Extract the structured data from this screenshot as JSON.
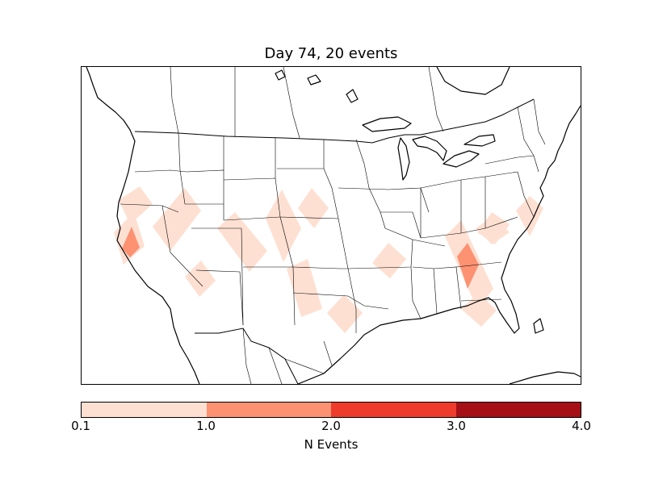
{
  "title": "Day 74, 20 events",
  "colorbar": {
    "label": "N Events",
    "ticks": [
      "0.1",
      "1.0",
      "2.0",
      "3.0",
      "4.0"
    ],
    "colors": [
      "#fee0d2",
      "#fc9272",
      "#ef3b2c",
      "#a50f15"
    ]
  },
  "map": {
    "border_color": "#000000",
    "low_color": "#fee0d2",
    "mid_color": "#fc9272"
  }
}
